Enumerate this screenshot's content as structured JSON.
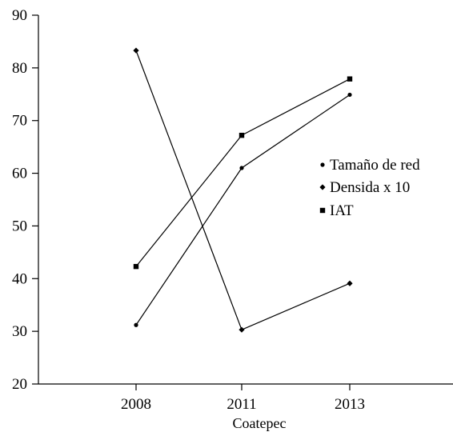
{
  "chart_data": {
    "type": "line",
    "categories": [
      "2008",
      "2011",
      "2013"
    ],
    "series": [
      {
        "name": "Tamaño de red",
        "marker": "circle",
        "values": [
          31.2,
          61.0,
          74.9
        ]
      },
      {
        "name": "Densida x 10",
        "marker": "diamond",
        "values": [
          83.3,
          30.3,
          39.1
        ]
      },
      {
        "name": "IAT",
        "marker": "square",
        "values": [
          42.3,
          67.2,
          77.9
        ]
      }
    ],
    "xlabel": "Coatepec",
    "ylabel": "",
    "ylim": [
      20,
      90
    ],
    "yticks": [
      20,
      30,
      40,
      50,
      60,
      70,
      80,
      90
    ],
    "grid": false,
    "legend": "right",
    "colors": {
      "line": "#000000",
      "axis": "#000000"
    }
  }
}
